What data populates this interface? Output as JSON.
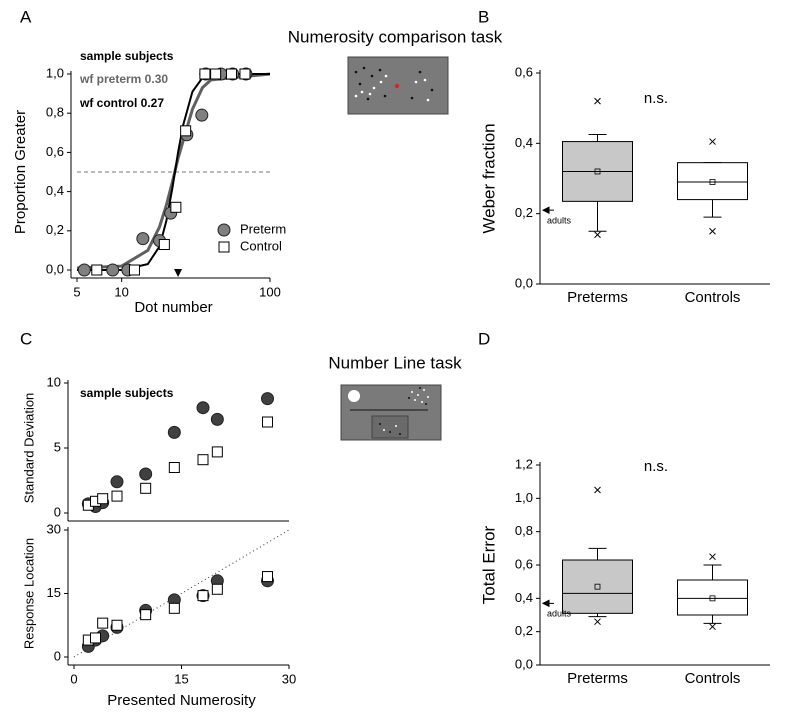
{
  "figure": {
    "titles": [
      "Numerosity comparison task",
      "Number Line task"
    ],
    "panel_labels": [
      "A",
      "B",
      "C",
      "D"
    ]
  },
  "chart_data": [
    {
      "type": "scatter",
      "xlabel": "Dot number",
      "ylabel": "Proportion Greater",
      "xlog": true,
      "xlim": [
        5,
        100
      ],
      "xticks": [
        5,
        10,
        100
      ],
      "ylim": [
        0,
        1
      ],
      "yticks": [
        {
          "value": 0,
          "label": "0,0"
        },
        {
          "value": 0.2,
          "label": "0,2"
        },
        {
          "value": 0.4,
          "label": "0,4"
        },
        {
          "value": 0.6,
          "label": "0,6"
        },
        {
          "value": 0.8,
          "label": "0,8"
        },
        {
          "value": 1,
          "label": "1,0"
        }
      ],
      "annotations": [
        "sample subjects",
        "wf preterm  0.30",
        "wf control  0.27"
      ],
      "hline": 0.5,
      "arrow_x": 24,
      "series": [
        {
          "name": "Preterm",
          "color": "#808080",
          "marker": "circle",
          "x": [
            5.6,
            8.7,
            11,
            13.9,
            18,
            21.4,
            27.5,
            34.7,
            36.9,
            46.7,
            56,
            68.8
          ],
          "values": [
            0,
            0,
            0,
            0.16,
            0.15,
            0.29,
            0.69,
            0.79,
            1,
            1,
            1,
            1
          ]
        },
        {
          "name": "Control",
          "color": "#ffffff",
          "marker": "square",
          "x": [
            6.8,
            12.2,
            19.4,
            23.2,
            27,
            36.4,
            43,
            55,
            67.8
          ],
          "values": [
            0,
            0,
            0.13,
            0.32,
            0.71,
            1,
            1,
            1,
            1
          ]
        }
      ],
      "fits": [
        {
          "color": "#606060",
          "x": [
            5,
            10,
            15,
            18,
            20,
            22,
            24,
            26,
            30,
            35,
            40,
            100
          ],
          "values": [
            0.01,
            0.02,
            0.1,
            0.22,
            0.33,
            0.45,
            0.57,
            0.66,
            0.82,
            0.93,
            0.97,
            1
          ]
        },
        {
          "color": "#000000",
          "x": [
            5,
            10,
            15,
            18,
            20,
            22,
            24,
            26,
            30,
            35,
            40,
            100
          ],
          "values": [
            0,
            0,
            0.03,
            0.12,
            0.25,
            0.42,
            0.6,
            0.74,
            0.91,
            0.98,
            1,
            1
          ]
        }
      ]
    },
    {
      "type": "box",
      "ylabel": "Weber fraction",
      "categories": [
        "Preterms",
        "Controls"
      ],
      "colors": [
        "#c8c8c8",
        "#ffffff"
      ],
      "ylim": [
        0,
        0.6
      ],
      "yticks": [
        {
          "value": 0,
          "label": "0,0"
        },
        {
          "value": 0.2,
          "label": "0,2"
        },
        {
          "value": 0.4,
          "label": "0,4"
        },
        {
          "value": 0.6,
          "label": "0,6"
        }
      ],
      "annotations": [
        "n.s."
      ],
      "reference": {
        "label": "adults",
        "value": 0.21
      },
      "boxes": [
        {
          "whislo": 0.15,
          "q1": 0.235,
          "med": 0.32,
          "q3": 0.405,
          "whishi": 0.425,
          "mean": 0.32,
          "fliers": [
            0.52,
            0.14
          ]
        },
        {
          "whislo": 0.19,
          "q1": 0.24,
          "med": 0.29,
          "q3": 0.345,
          "whishi": 0.345,
          "mean": 0.29,
          "fliers": [
            0.405,
            0.15
          ]
        }
      ]
    },
    {
      "type": "scatter",
      "ylabel": "Standard Deviation",
      "xlim": [
        0,
        30
      ],
      "ylim": [
        0,
        10
      ],
      "yticks": [
        0,
        5,
        10
      ],
      "annotations": [
        "sample subjects"
      ],
      "series": [
        {
          "name": "Preterm",
          "color": "#404040",
          "marker": "circle",
          "x": [
            2,
            3,
            4,
            6,
            10,
            14,
            18,
            20,
            27
          ],
          "values": [
            0.7,
            0.5,
            0.8,
            2.4,
            3.0,
            6.2,
            8.1,
            7.2,
            8.8
          ]
        },
        {
          "name": "Control",
          "color": "#ffffff",
          "marker": "square",
          "x": [
            2,
            3,
            4,
            6,
            10,
            14,
            18,
            20,
            27
          ],
          "values": [
            0.6,
            0.9,
            1.1,
            1.3,
            1.9,
            3.5,
            4.1,
            4.7,
            7.0
          ]
        }
      ]
    },
    {
      "type": "scatter",
      "xlabel": "Presented Numerosity",
      "ylabel": "Response Location",
      "xlim": [
        0,
        30
      ],
      "xticks": [
        0,
        15,
        30
      ],
      "ylim": [
        0,
        30
      ],
      "yticks": [
        0,
        15,
        30
      ],
      "identity_line": true,
      "series": [
        {
          "name": "Preterm",
          "color": "#404040",
          "marker": "circle",
          "x": [
            2,
            3,
            4,
            6,
            10,
            14,
            18,
            20,
            27
          ],
          "values": [
            2.5,
            4,
            5,
            7,
            11,
            13.5,
            14.5,
            18,
            18
          ]
        },
        {
          "name": "Control",
          "color": "#ffffff",
          "marker": "square",
          "x": [
            2,
            3,
            4,
            6,
            10,
            14,
            18,
            20,
            27
          ],
          "values": [
            4,
            4.5,
            8,
            7.5,
            10,
            11.5,
            14.5,
            16,
            19
          ]
        }
      ]
    },
    {
      "type": "box",
      "ylabel": "Total Error",
      "categories": [
        "Preterms",
        "Controls"
      ],
      "colors": [
        "#c8c8c8",
        "#ffffff"
      ],
      "ylim": [
        0,
        1.2
      ],
      "yticks": [
        {
          "value": 0,
          "label": "0,0"
        },
        {
          "value": 0.2,
          "label": "0,2"
        },
        {
          "value": 0.4,
          "label": "0,4"
        },
        {
          "value": 0.6,
          "label": "0,6"
        },
        {
          "value": 0.8,
          "label": "0,8"
        },
        {
          "value": 1,
          "label": "1,0"
        },
        {
          "value": 1.2,
          "label": "1,2"
        }
      ],
      "annotations": [
        "n.s."
      ],
      "reference": {
        "label": "adults",
        "value": 0.37
      },
      "boxes": [
        {
          "whislo": 0.29,
          "q1": 0.31,
          "med": 0.43,
          "q3": 0.63,
          "whishi": 0.7,
          "mean": 0.47,
          "fliers": [
            1.05,
            0.26
          ]
        },
        {
          "whislo": 0.25,
          "q1": 0.3,
          "med": 0.4,
          "q3": 0.51,
          "whishi": 0.6,
          "mean": 0.4,
          "fliers": [
            0.65,
            0.23
          ]
        }
      ]
    }
  ]
}
